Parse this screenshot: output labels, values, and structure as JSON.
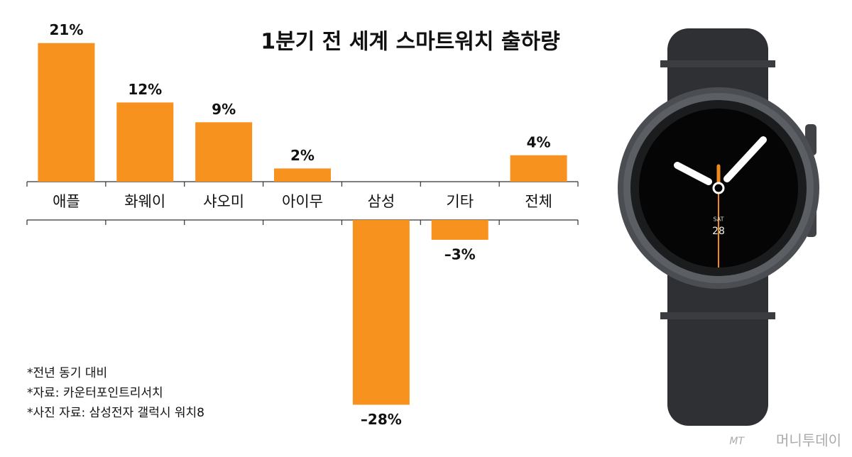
{
  "chart_data": {
    "type": "bar",
    "title": "1분기 전 세계 스마트워치 출하량",
    "categories": [
      "애플",
      "화웨이",
      "샤오미",
      "아이무",
      "삼성",
      "기타",
      "전체"
    ],
    "values": [
      21,
      12,
      9,
      2,
      -28,
      -3,
      4
    ],
    "value_labels": [
      "21%",
      "12%",
      "9%",
      "2%",
      "–28%",
      "–3%",
      "4%"
    ],
    "color": "#f7921e"
  },
  "notes": [
    "*전년 동기 대비",
    "*자료: 카운터포인트리서치",
    "*사진 자료: 삼성전자 갤럭시 워치8"
  ],
  "watch_face": {
    "day": "SAT",
    "date": "28"
  },
  "watermark": {
    "brand": "MT",
    "name": "머니투데이"
  }
}
